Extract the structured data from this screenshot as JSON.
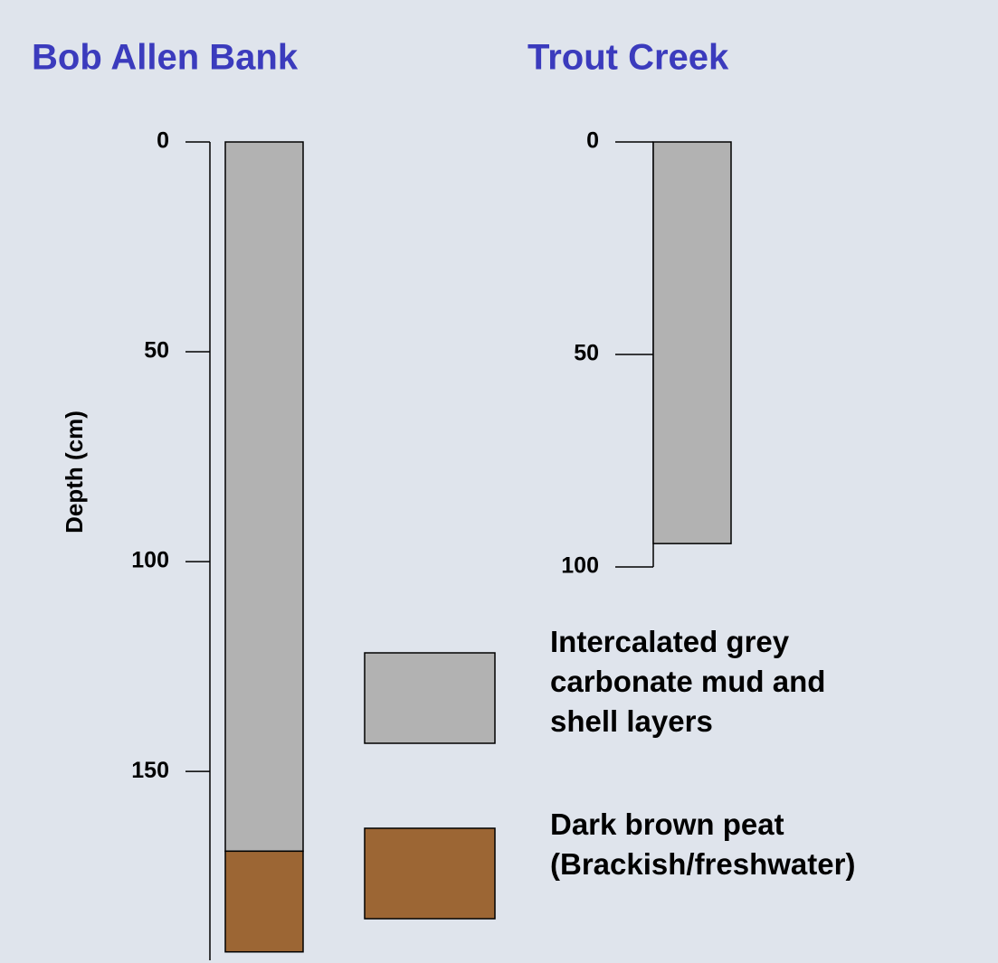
{
  "chart_data": [
    {
      "type": "core",
      "title": "Bob Allen Bank",
      "ylabel": "Depth (cm)",
      "ylim": [
        0,
        195
      ],
      "yticks": [
        0,
        50,
        100,
        150
      ],
      "series": [
        {
          "name": "Intercalated grey\ncarbonate  mud and\nshell layers",
          "color": "#b2b2b2",
          "values": [
            169
          ]
        },
        {
          "name": "Dark brown peat\n(Brackish/freshwater)",
          "color": "#9c6634",
          "values": [
            24
          ]
        }
      ]
    },
    {
      "type": "core",
      "title": "Trout Creek",
      "ylim": [
        0,
        100
      ],
      "yticks": [
        0,
        50,
        100
      ],
      "series": [
        {
          "name": "Intercalated grey\ncarbonate  mud and\nshell layers",
          "color": "#b2b2b2",
          "values": [
            94.5
          ]
        }
      ]
    }
  ]
}
